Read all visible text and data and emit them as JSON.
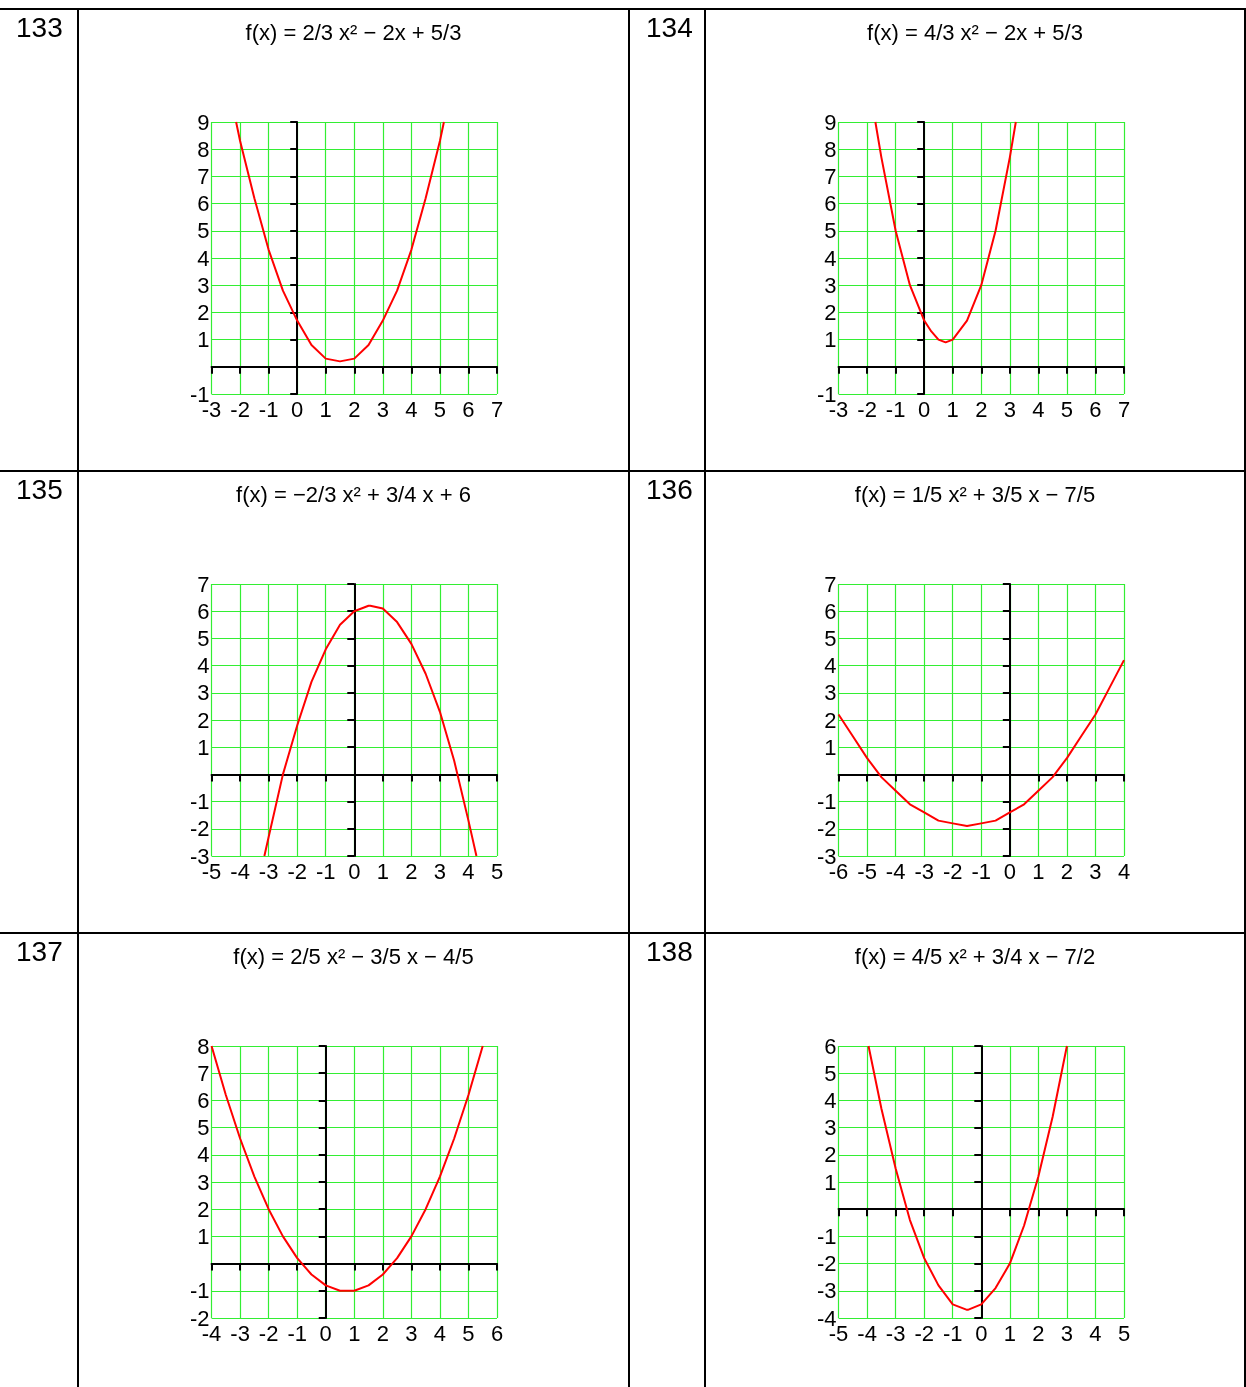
{
  "chart_data": [
    {
      "type": "line",
      "title": "f(x) = 2/3 x² − 2x + 5/3",
      "annotations": [
        "133"
      ],
      "x": [
        -2.14,
        -2,
        -1.5,
        -1,
        -0.5,
        0,
        0.5,
        1,
        1.5,
        2,
        2.5,
        3,
        3.5,
        4,
        4.5,
        5,
        5.14
      ],
      "series": [
        {
          "color": "#ff0000",
          "values": [
            9.0,
            8.3,
            6.2,
            4.3,
            2.8,
            1.7,
            0.8,
            0.3,
            0.2,
            0.3,
            0.8,
            1.7,
            2.8,
            4.3,
            6.2,
            8.3,
            9.0
          ]
        }
      ],
      "xlim": [
        -3,
        7
      ],
      "ylim": [
        -1,
        9
      ],
      "xticks": [
        -3,
        -2,
        -1,
        0,
        1,
        2,
        3,
        4,
        5,
        6,
        7
      ],
      "yticks": [
        -1,
        1,
        2,
        3,
        4,
        5,
        6,
        7,
        8,
        9
      ],
      "grid": true,
      "marker": "none"
    },
    {
      "type": "line",
      "title": "f(x) = 4/3 x² − 2x + 5/3",
      "annotations": [
        "134"
      ],
      "x": [
        -1.71,
        -1.5,
        -1,
        -0.5,
        0,
        0.25,
        0.5,
        0.75,
        1,
        1.5,
        2,
        2.5,
        3,
        3.21
      ],
      "series": [
        {
          "color": "#ff0000",
          "values": [
            9.0,
            7.7,
            5.0,
            3.0,
            1.7,
            1.3,
            1.0,
            0.9,
            1.0,
            1.7,
            3.0,
            5.0,
            7.7,
            9.0
          ]
        }
      ],
      "xlim": [
        -3,
        7
      ],
      "ylim": [
        -1,
        9
      ],
      "xticks": [
        -3,
        -2,
        -1,
        0,
        1,
        2,
        3,
        4,
        5,
        6,
        7
      ],
      "yticks": [
        -1,
        1,
        2,
        3,
        4,
        5,
        6,
        7,
        8,
        9
      ],
      "grid": true,
      "marker": "none"
    },
    {
      "type": "line",
      "title": "f(x) = −2/3 x² + 3/4 x + 6",
      "annotations": [
        "135"
      ],
      "x": [
        -3.15,
        -3,
        -2.5,
        -2,
        -1.5,
        -1,
        -0.5,
        0,
        0.5,
        0.56,
        1,
        1.5,
        2,
        2.5,
        3,
        3.5,
        4,
        4.28
      ],
      "series": [
        {
          "color": "#ff0000",
          "values": [
            -3.0,
            -2.3,
            0.0,
            1.8,
            3.4,
            4.6,
            5.5,
            6.0,
            6.2,
            6.2,
            6.1,
            5.6,
            4.8,
            3.7,
            2.3,
            0.5,
            -1.7,
            -3.0
          ]
        }
      ],
      "xlim": [
        -5,
        5
      ],
      "ylim": [
        -3,
        7
      ],
      "xticks": [
        -5,
        -4,
        -3,
        -2,
        -1,
        0,
        1,
        2,
        3,
        4,
        5
      ],
      "yticks": [
        -3,
        -2,
        -1,
        1,
        2,
        3,
        4,
        5,
        6,
        7
      ],
      "grid": true,
      "marker": "none"
    },
    {
      "type": "line",
      "title": "f(x) = 1/5 x² + 3/5 x − 7/5",
      "annotations": [
        "136"
      ],
      "x": [
        -6,
        -5.5,
        -5,
        -4.5,
        -4,
        -3.5,
        -3,
        -2.5,
        -2,
        -1.5,
        -1,
        -0.5,
        0,
        0.5,
        1,
        1.5,
        2,
        2.5,
        3,
        3.5,
        4
      ],
      "series": [
        {
          "color": "#ff0000",
          "values": [
            2.2,
            1.4,
            0.6,
            -0.1,
            -0.6,
            -1.1,
            -1.4,
            -1.7,
            -1.8,
            -1.9,
            -1.8,
            -1.7,
            -1.4,
            -1.1,
            -0.6,
            -0.1,
            0.6,
            1.4,
            2.2,
            3.2,
            4.2
          ]
        }
      ],
      "xlim": [
        -6,
        4
      ],
      "ylim": [
        -3,
        7
      ],
      "xticks": [
        -6,
        -5,
        -4,
        -3,
        -2,
        -1,
        0,
        1,
        2,
        3,
        4
      ],
      "yticks": [
        -3,
        -2,
        -1,
        1,
        2,
        3,
        4,
        5,
        6,
        7
      ],
      "grid": true,
      "marker": "none"
    },
    {
      "type": "line",
      "title": "f(x) = 2/5 x² − 3/5 x − 4/5",
      "annotations": [
        "137"
      ],
      "x": [
        -4,
        -3.5,
        -3,
        -2.5,
        -2,
        -1.5,
        -1,
        -0.5,
        0,
        0.5,
        0.75,
        1,
        1.5,
        2,
        2.5,
        3,
        3.5,
        4,
        4.5,
        5,
        5.5
      ],
      "series": [
        {
          "color": "#ff0000",
          "values": [
            8.0,
            6.2,
            4.6,
            3.2,
            2.0,
            1.0,
            0.2,
            -0.4,
            -0.8,
            -1.0,
            -1.0,
            -1.0,
            -0.8,
            -0.4,
            0.2,
            1.0,
            2.0,
            3.2,
            4.6,
            6.2,
            8.0
          ]
        }
      ],
      "xlim": [
        -4,
        6
      ],
      "ylim": [
        -2,
        8
      ],
      "xticks": [
        -4,
        -3,
        -2,
        -1,
        0,
        1,
        2,
        3,
        4,
        5,
        6
      ],
      "yticks": [
        -2,
        -1,
        1,
        2,
        3,
        4,
        5,
        6,
        7,
        8
      ],
      "grid": true,
      "marker": "none"
    },
    {
      "type": "line",
      "title": "f(x) = 4/5 x² + 3/4 x − 7/2",
      "annotations": [
        "138"
      ],
      "x": [
        -3.95,
        -3.5,
        -3,
        -2.5,
        -2,
        -1.5,
        -1,
        -0.5,
        -0.47,
        0,
        0.5,
        1,
        1.5,
        2,
        2.5,
        3,
        3.01
      ],
      "series": [
        {
          "color": "#ff0000",
          "values": [
            6.0,
            3.7,
            1.5,
            -0.4,
            -1.8,
            -2.8,
            -3.5,
            -3.7,
            -3.7,
            -3.5,
            -2.9,
            -2.0,
            -0.6,
            1.2,
            3.4,
            6.0,
            6.0
          ]
        }
      ],
      "xlim": [
        -5,
        5
      ],
      "ylim": [
        -4,
        6
      ],
      "xticks": [
        -5,
        -4,
        -3,
        -2,
        -1,
        0,
        1,
        2,
        3,
        4,
        5
      ],
      "yticks": [
        -4,
        -3,
        -2,
        -1,
        1,
        2,
        3,
        4,
        5,
        6
      ],
      "grid": true,
      "marker": "none"
    }
  ]
}
